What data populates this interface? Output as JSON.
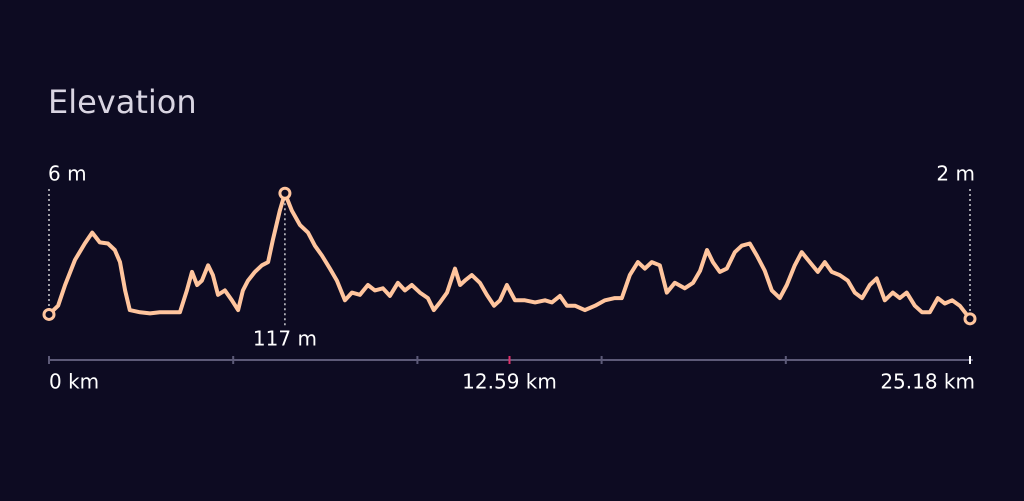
{
  "chart_data": {
    "type": "line",
    "title": "Elevation",
    "color": "#ffc59e",
    "x": [
      0,
      0.25,
      0.44,
      0.71,
      0.98,
      1.18,
      1.39,
      1.61,
      1.8,
      1.94,
      2.08,
      2.21,
      2.49,
      2.76,
      3.03,
      3.31,
      3.58,
      3.77,
      3.91,
      4.05,
      4.18,
      4.35,
      4.48,
      4.62,
      4.81,
      5.0,
      5.17,
      5.3,
      5.44,
      5.63,
      5.82,
      5.99,
      6.12,
      6.31,
      6.45,
      6.64,
      6.86,
      7.08,
      7.27,
      7.46,
      7.68,
      7.87,
      8.09,
      8.28,
      8.5,
      8.72,
      8.91,
      9.13,
      9.32,
      9.54,
      9.73,
      9.92,
      10.14,
      10.36,
      10.52,
      10.69,
      10.88,
      11.1,
      11.24,
      11.37,
      11.56,
      11.78,
      11.97,
      12.17,
      12.33,
      12.52,
      12.74,
      13.01,
      13.29,
      13.56,
      13.75,
      13.97,
      14.16,
      14.38,
      14.65,
      14.93,
      15.2,
      15.47,
      15.66,
      15.88,
      16.1,
      16.29,
      16.48,
      16.7,
      16.89,
      17.11,
      17.38,
      17.61,
      17.8,
      17.99,
      18.15,
      18.34,
      18.53,
      18.75,
      18.94,
      19.16,
      19.35,
      19.57,
      19.76,
      19.98,
      20.17,
      20.39,
      20.58,
      20.8,
      21.02,
      21.21,
      21.4,
      21.62,
      21.84,
      22.03,
      22.23,
      22.44,
      22.63,
      22.85,
      23.07,
      23.26,
      23.45,
      23.67,
      23.87,
      24.08,
      24.3,
      24.49,
      24.69,
      24.9,
      25.18
    ],
    "values": [
      6,
      14,
      33,
      56,
      71,
      81,
      72,
      71,
      65,
      54,
      28,
      10,
      8,
      7,
      8,
      8,
      8,
      28,
      45,
      33,
      37,
      51,
      42,
      24,
      28,
      19,
      10,
      28,
      37,
      45,
      51,
      54,
      74,
      101,
      117,
      101,
      88,
      81,
      69,
      60,
      48,
      37,
      19,
      26,
      24,
      33,
      28,
      30,
      23,
      35,
      28,
      33,
      26,
      21,
      10,
      17,
      26,
      48,
      33,
      37,
      42,
      35,
      24,
      14,
      19,
      33,
      19,
      19,
      17,
      19,
      17,
      23,
      14,
      14,
      10,
      14,
      19,
      21,
      21,
      42,
      54,
      48,
      54,
      51,
      26,
      35,
      30,
      35,
      46,
      65,
      54,
      45,
      48,
      63,
      69,
      71,
      60,
      46,
      28,
      21,
      33,
      51,
      63,
      54,
      45,
      54,
      45,
      42,
      37,
      26,
      21,
      33,
      39,
      19,
      26,
      21,
      26,
      14,
      8,
      8,
      21,
      16,
      19,
      14,
      2
    ],
    "annotations": [
      {
        "x": 0,
        "y": 6,
        "label": "6 m"
      },
      {
        "x": 6.45,
        "y": 117,
        "label": "117 m"
      },
      {
        "x": 25.18,
        "y": 2,
        "label": "2 m"
      }
    ],
    "xlim": [
      0,
      25.18
    ],
    "ylim": [
      0,
      120
    ],
    "xticks": [
      {
        "value": 0,
        "label": "0 km"
      },
      {
        "value": 12.59,
        "label": "12.59 km"
      },
      {
        "value": 25.18,
        "label": "25.18 km"
      }
    ],
    "minor_xticks": [
      5.036,
      10.072,
      15.108,
      20.144
    ],
    "highlight_tick_color": "#e0306a"
  }
}
